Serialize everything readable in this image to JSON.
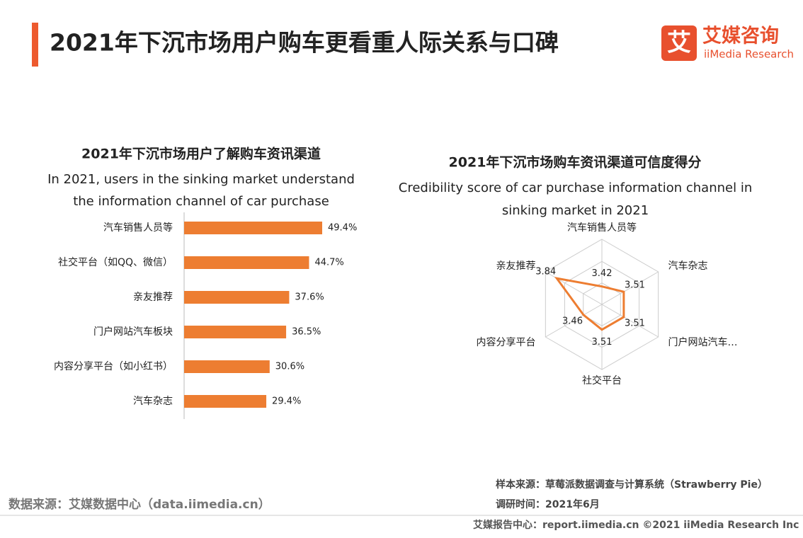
{
  "header": {
    "title": "2021年下沉市场用户购车更看重人际关系与口碑",
    "logo_icon": "艾",
    "logo_name": "艾媒咨询",
    "logo_en": "iiMedia Research"
  },
  "chart_data": [
    {
      "type": "bar",
      "orientation": "horizontal",
      "title": "2021年下沉市场用户了解购车资讯渠道",
      "subtitle": "In 2021, users in the sinking market understand the information channel of car purchase",
      "categories": [
        "汽车销售人员等",
        "社交平台（如QQ、微信）",
        "亲友推荐",
        "门户网站汽车板块",
        "内容分享平台（如小红书）",
        "汽车杂志"
      ],
      "values": [
        49.4,
        44.7,
        37.6,
        36.5,
        30.6,
        29.4
      ],
      "value_labels": [
        "49.4%",
        "44.7%",
        "37.6%",
        "36.5%",
        "30.6%",
        "29.4%"
      ],
      "color": "#ed7d31"
    },
    {
      "type": "radar",
      "title": "2021年下沉市场购车资讯渠道可信度得分",
      "subtitle": "Credibility score of car purchase information channel in sinking market in 2021",
      "categories": [
        "汽车销售人员等",
        "汽车杂志",
        "门户网站汽车…",
        "社交平台",
        "内容分享平台",
        "亲友推荐"
      ],
      "values": [
        3.42,
        3.51,
        3.51,
        3.51,
        3.46,
        3.84
      ],
      "rlim": [
        3.2,
        4.0
      ],
      "color": "#ed7d31"
    }
  ],
  "footer": {
    "source": "数据来源：艾媒数据中心（data.iimedia.cn）",
    "sample": "样本来源：草莓派数据调查与计算系统（Strawberry Pie）",
    "time": "调研时间：2021年6月",
    "bottom": "艾媒报告中心：report.iimedia.cn  ©2021  iiMedia Research  Inc"
  }
}
